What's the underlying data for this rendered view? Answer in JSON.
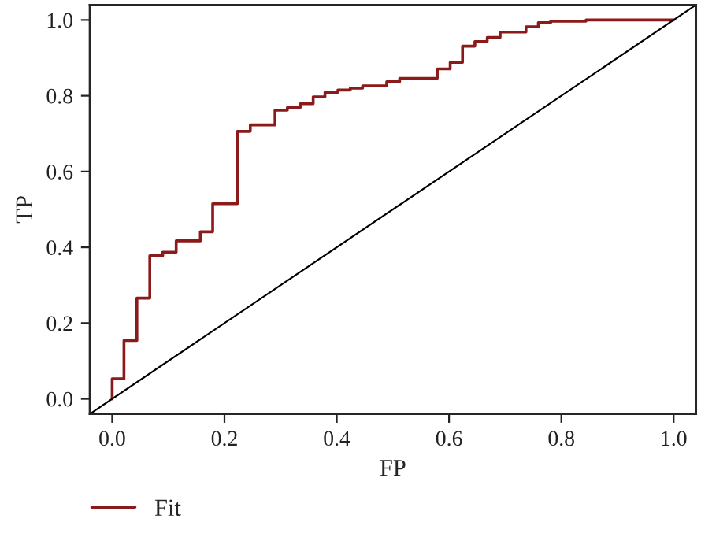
{
  "chart_data": {
    "type": "step",
    "xlabel": "FP",
    "ylabel": "TP",
    "xlim": [
      -0.04,
      1.04
    ],
    "ylim": [
      -0.04,
      1.04
    ],
    "xticks": [
      {
        "value": 0,
        "label": "0.0"
      },
      {
        "value": 0.2,
        "label": "0.2"
      },
      {
        "value": 0.4,
        "label": "0.4"
      },
      {
        "value": 0.6,
        "label": "0.6"
      },
      {
        "value": 0.8,
        "label": "0.8"
      },
      {
        "value": 1,
        "label": "1.0"
      }
    ],
    "yticks": [
      {
        "value": 0,
        "label": "0.0"
      },
      {
        "value": 0.2,
        "label": "0.2"
      },
      {
        "value": 0.4,
        "label": "0.4"
      },
      {
        "value": 0.6,
        "label": "0.6"
      },
      {
        "value": 0.8,
        "label": "0.8"
      },
      {
        "value": 1,
        "label": "1.0"
      }
    ],
    "grid": false,
    "legend": "bottom left",
    "series": [
      {
        "name": "Fit",
        "color": "#8b1a1a",
        "x": [
          0,
          0,
          0.021,
          0.044,
          0.067,
          0.09,
          0.114,
          0.157,
          0.179,
          0.223,
          0.223,
          0.246,
          0.29,
          0.312,
          0.335,
          0.358,
          0.379,
          0.402,
          0.424,
          0.446,
          0.489,
          0.512,
          0.579,
          0.602,
          0.624,
          0.646,
          0.668,
          0.691,
          0.737,
          0.759,
          0.781,
          0.844,
          1.0
        ],
        "values": [
          0,
          0.053,
          0.154,
          0.266,
          0.378,
          0.387,
          0.417,
          0.441,
          0.515,
          0.52,
          0.706,
          0.723,
          0.762,
          0.769,
          0.779,
          0.797,
          0.809,
          0.815,
          0.82,
          0.826,
          0.837,
          0.846,
          0.871,
          0.888,
          0.931,
          0.943,
          0.954,
          0.968,
          0.982,
          0.993,
          0.997,
          1.0,
          1.0
        ]
      },
      {
        "type": "line",
        "color": "#000000",
        "x": [
          -0.04,
          1.04
        ],
        "values": [
          -0.04,
          1.04
        ]
      }
    ]
  }
}
